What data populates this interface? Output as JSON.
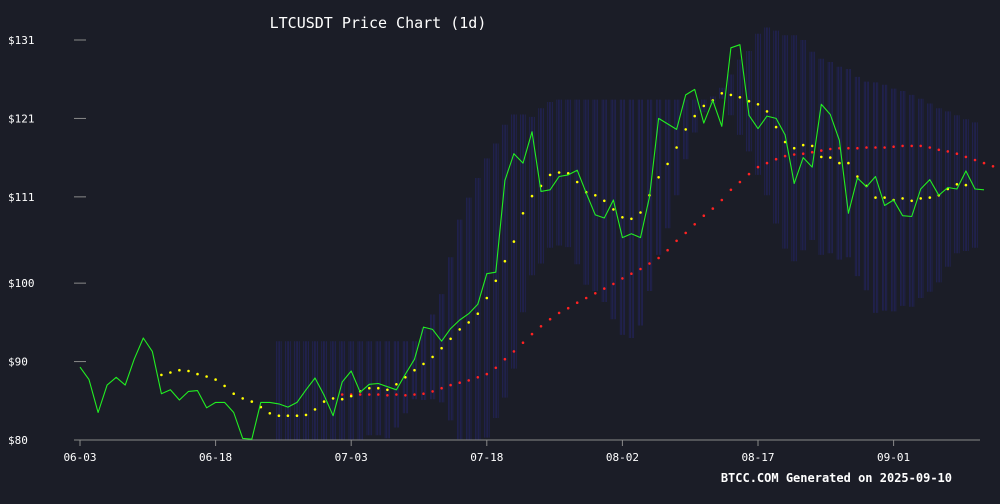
{
  "chart_data": {
    "type": "line",
    "title": "LTCUSDT Price Chart (1d)",
    "xlabel": "",
    "ylabel": "",
    "footer": "BTCC.COM Generated on 2025-09-10",
    "ylim": [
      80,
      131
    ],
    "y_ticks": [
      {
        "value": 80,
        "label": "$80"
      },
      {
        "value": 90,
        "label": "$90"
      },
      {
        "value": 100,
        "label": "$100"
      },
      {
        "value": 111,
        "label": "$111"
      },
      {
        "value": 121,
        "label": "$121"
      },
      {
        "value": 131,
        "label": "$131"
      }
    ],
    "x_ticks": [
      {
        "date": "2025-06-03",
        "label": "06-03"
      },
      {
        "date": "2025-06-18",
        "label": "06-18"
      },
      {
        "date": "2025-07-03",
        "label": "07-03"
      },
      {
        "date": "2025-07-18",
        "label": "07-18"
      },
      {
        "date": "2025-08-02",
        "label": "08-02"
      },
      {
        "date": "2025-08-17",
        "label": "08-17"
      },
      {
        "date": "2025-09-01",
        "label": "09-01"
      }
    ],
    "x_range": [
      "2025-06-03",
      "2025-09-10"
    ],
    "grid": false,
    "colors": {
      "background": "#1b1d27",
      "price": "#22ee22",
      "short_ma": "#ffff00",
      "long_ma": "#ff2222",
      "bands": "#2a2a9a",
      "axis": "#8a8a8a",
      "text": "#ffffff"
    },
    "series": [
      {
        "key": "price",
        "style": "line",
        "start_date": "2025-06-03",
        "values": [
          89.3,
          87.7,
          83.5,
          87.0,
          88.0,
          87.0,
          90.3,
          93.0,
          91.3,
          85.9,
          86.4,
          85.1,
          86.2,
          86.3,
          84.1,
          84.8,
          84.8,
          83.5,
          80.2,
          80.1,
          84.8,
          84.8,
          84.6,
          84.2,
          84.8,
          86.4,
          87.9,
          85.7,
          83.1,
          87.4,
          88.8,
          86.1,
          87.1,
          87.2,
          86.8,
          86.4,
          88.4,
          90.3,
          94.4,
          94.1,
          92.6,
          94.2,
          95.3,
          96.1,
          97.3,
          101.2,
          101.4,
          113.1,
          116.5,
          115.3,
          119.3,
          111.7,
          111.9,
          113.6,
          113.8,
          114.4,
          111.5,
          108.7,
          108.3,
          110.6,
          105.8,
          106.3,
          105.8,
          111.0,
          121.0,
          120.3,
          119.6,
          124.0,
          124.7,
          120.4,
          123.3,
          120.0,
          130.0,
          130.4,
          121.4,
          119.7,
          121.3,
          121.0,
          118.9,
          112.7,
          116.0,
          114.8,
          122.8,
          121.5,
          118.2,
          108.9,
          113.4,
          112.3,
          113.6,
          109.9,
          110.6,
          108.6,
          108.5,
          112.0,
          113.2,
          111.2,
          112.2,
          112.0,
          114.3,
          112.0,
          111.9
        ]
      },
      {
        "key": "short_ma",
        "style": "dots",
        "start_date": "2025-06-12",
        "values": [
          88.3,
          88.6,
          88.9,
          88.8,
          88.4,
          88.1,
          87.7,
          86.9,
          85.9,
          85.3,
          84.9,
          84.2,
          83.4,
          83.1,
          83.1,
          83.1,
          83.2,
          83.9,
          84.9,
          85.3,
          85.2,
          85.6,
          86.2,
          86.6,
          86.6,
          86.4,
          87.1,
          88.0,
          88.9,
          89.7,
          90.6,
          91.7,
          92.9,
          94.1,
          95.0,
          96.1,
          98.1,
          100.3,
          102.8,
          105.3,
          108.9,
          111.1,
          112.4,
          113.8,
          114.1,
          114.0,
          112.9,
          111.6,
          111.2,
          110.5,
          109.4,
          108.4,
          108.2,
          109.0,
          111.2,
          113.5,
          115.2,
          117.3,
          119.6,
          121.3,
          122.6,
          123.3,
          124.2,
          124.0,
          123.7,
          123.2,
          122.8,
          121.9,
          119.9,
          118.0,
          117.2,
          117.6,
          117.5,
          116.1,
          116.0,
          115.3,
          115.3,
          113.6,
          112.4,
          110.9,
          110.9,
          110.6,
          110.8,
          110.5,
          110.8,
          110.9,
          111.2,
          112.0,
          112.6,
          112.5
        ]
      },
      {
        "key": "long_ma",
        "style": "dots",
        "start_date": "2025-07-02",
        "values": [
          85.8,
          85.8,
          85.8,
          85.8,
          85.8,
          85.7,
          85.8,
          85.7,
          85.8,
          85.9,
          86.2,
          86.6,
          87.0,
          87.3,
          87.6,
          88.0,
          88.4,
          89.2,
          90.3,
          91.3,
          92.4,
          93.5,
          94.5,
          95.4,
          96.2,
          96.8,
          97.5,
          98.1,
          98.7,
          99.3,
          99.9,
          100.6,
          101.2,
          101.8,
          102.5,
          103.2,
          104.2,
          105.4,
          106.4,
          107.5,
          108.6,
          109.5,
          110.6,
          111.9,
          112.9,
          113.9,
          114.8,
          115.3,
          115.8,
          116.2,
          116.4,
          116.5,
          116.7,
          116.9,
          117.1,
          117.2,
          117.2,
          117.2,
          117.3,
          117.3,
          117.3,
          117.4,
          117.5,
          117.5,
          117.5,
          117.3,
          117.0,
          116.8,
          116.5,
          116.1,
          115.7,
          115.3,
          114.9
        ]
      },
      {
        "key": "bands",
        "style": "vertical-bands",
        "start_date": "2025-06-25",
        "upper": [
          92.6,
          92.6,
          92.6,
          92.6,
          92.6,
          92.6,
          92.6,
          92.6,
          92.6,
          92.6,
          92.6,
          92.6,
          92.6,
          92.6,
          92.6,
          92.6,
          94.3,
          96.0,
          98.6,
          103.3,
          108.1,
          110.9,
          113.4,
          115.9,
          117.8,
          120.2,
          121.5,
          121.5,
          121.2,
          122.3,
          123.1,
          123.4,
          123.4,
          123.4,
          123.4,
          123.4,
          123.4,
          123.4,
          123.4,
          123.4,
          123.4,
          123.4,
          123.4,
          123.4,
          123.4,
          123.4,
          123.4,
          123.4,
          123.8,
          124.9,
          126.6,
          128.5,
          129.6,
          131.8,
          132.6,
          132.2,
          131.6,
          131.6,
          131.0,
          129.5,
          128.6,
          128.2,
          127.6,
          127.3,
          126.3,
          125.7,
          125.6,
          125.3,
          124.8,
          124.5,
          124.0,
          123.5,
          122.9,
          122.3,
          121.9,
          121.4,
          120.9,
          120.5
        ]
      }
    ]
  }
}
